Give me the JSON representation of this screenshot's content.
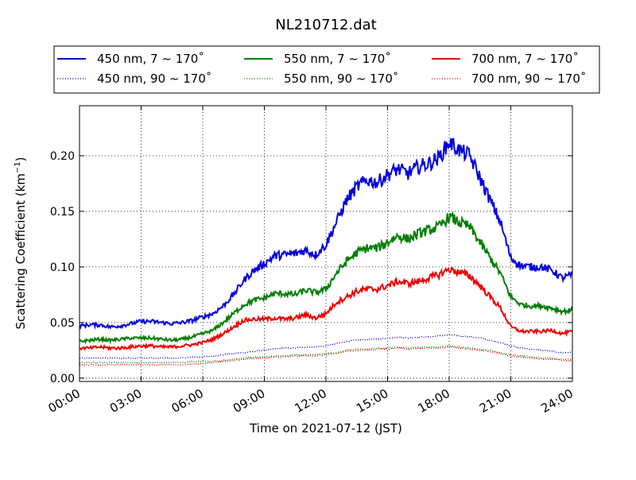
{
  "chart_data": {
    "type": "line",
    "title": "NL210712.dat",
    "xlabel": "Time on 2021-07-12 (JST)",
    "ylabel": "Scattering Coefficient (km",
    "ylabel_sup": "−1",
    "ylabel_close": ")",
    "x_unit": "hours",
    "xlim": [
      0,
      24
    ],
    "ylim": [
      -0.003,
      0.245
    ],
    "grid": true,
    "legend_position": "top (above plot)",
    "x_ticks": [
      {
        "value": 0,
        "label": "00:00"
      },
      {
        "value": 3,
        "label": "03:00"
      },
      {
        "value": 6,
        "label": "06:00"
      },
      {
        "value": 9,
        "label": "09:00"
      },
      {
        "value": 12,
        "label": "12:00"
      },
      {
        "value": 15,
        "label": "15:00"
      },
      {
        "value": 18,
        "label": "18:00"
      },
      {
        "value": 21,
        "label": "21:00"
      },
      {
        "value": 24,
        "label": "24:00"
      }
    ],
    "y_ticks": [
      {
        "value": 0.0,
        "label": "0.00"
      },
      {
        "value": 0.05,
        "label": "0.05"
      },
      {
        "value": 0.1,
        "label": "0.10"
      },
      {
        "value": 0.15,
        "label": "0.15"
      },
      {
        "value": 0.2,
        "label": "0.20"
      }
    ],
    "series": [
      {
        "name": "450 nm, 7 ~ 170˚",
        "color": "#0000dd",
        "style": "solid",
        "x": [
          0,
          0.5,
          1,
          1.5,
          2,
          2.5,
          3,
          3.5,
          4,
          4.5,
          5,
          5.5,
          6,
          6.5,
          7,
          7.5,
          8,
          8.5,
          9,
          9.5,
          10,
          10.5,
          11,
          11.5,
          12,
          12.5,
          13,
          13.5,
          14,
          14.5,
          15,
          15.5,
          16,
          16.5,
          17,
          17.5,
          18,
          18.5,
          19,
          19.5,
          20,
          20.5,
          21,
          21.5,
          22,
          22.5,
          23,
          23.5,
          24
        ],
        "y": [
          0.047,
          0.048,
          0.048,
          0.046,
          0.047,
          0.049,
          0.051,
          0.051,
          0.05,
          0.049,
          0.05,
          0.052,
          0.055,
          0.058,
          0.065,
          0.075,
          0.088,
          0.097,
          0.103,
          0.11,
          0.111,
          0.112,
          0.115,
          0.111,
          0.12,
          0.14,
          0.16,
          0.172,
          0.178,
          0.176,
          0.183,
          0.188,
          0.184,
          0.19,
          0.193,
          0.198,
          0.212,
          0.205,
          0.2,
          0.18,
          0.16,
          0.14,
          0.108,
          0.101,
          0.1,
          0.1,
          0.097,
          0.09,
          0.093
        ]
      },
      {
        "name": "550 nm, 7 ~ 170˚",
        "color": "#007f00",
        "style": "solid",
        "x": [
          0,
          0.5,
          1,
          1.5,
          2,
          2.5,
          3,
          3.5,
          4,
          4.5,
          5,
          5.5,
          6,
          6.5,
          7,
          7.5,
          8,
          8.5,
          9,
          9.5,
          10,
          10.5,
          11,
          11.5,
          12,
          12.5,
          13,
          13.5,
          14,
          14.5,
          15,
          15.5,
          16,
          16.5,
          17,
          17.5,
          18,
          18.5,
          19,
          19.5,
          20,
          20.5,
          21,
          21.5,
          22,
          22.5,
          23,
          23.5,
          24
        ],
        "y": [
          0.033,
          0.034,
          0.035,
          0.034,
          0.035,
          0.036,
          0.036,
          0.036,
          0.035,
          0.034,
          0.035,
          0.037,
          0.04,
          0.043,
          0.05,
          0.058,
          0.066,
          0.07,
          0.072,
          0.076,
          0.076,
          0.075,
          0.079,
          0.077,
          0.08,
          0.094,
          0.105,
          0.113,
          0.117,
          0.117,
          0.122,
          0.128,
          0.125,
          0.13,
          0.133,
          0.136,
          0.145,
          0.14,
          0.136,
          0.122,
          0.108,
          0.094,
          0.073,
          0.066,
          0.065,
          0.065,
          0.063,
          0.06,
          0.061
        ]
      },
      {
        "name": "700 nm, 7 ~ 170˚",
        "color": "#ee0000",
        "style": "solid",
        "x": [
          0,
          0.5,
          1,
          1.5,
          2,
          2.5,
          3,
          3.5,
          4,
          4.5,
          5,
          5.5,
          6,
          6.5,
          7,
          7.5,
          8,
          8.5,
          9,
          9.5,
          10,
          10.5,
          11,
          11.5,
          12,
          12.5,
          13,
          13.5,
          14,
          14.5,
          15,
          15.5,
          16,
          16.5,
          17,
          17.5,
          18,
          18.5,
          19,
          19.5,
          20,
          20.5,
          21,
          21.5,
          22,
          22.5,
          23,
          23.5,
          24
        ],
        "y": [
          0.027,
          0.027,
          0.028,
          0.027,
          0.027,
          0.028,
          0.029,
          0.029,
          0.028,
          0.028,
          0.029,
          0.03,
          0.032,
          0.035,
          0.04,
          0.046,
          0.052,
          0.053,
          0.053,
          0.054,
          0.053,
          0.054,
          0.057,
          0.054,
          0.058,
          0.068,
          0.073,
          0.078,
          0.08,
          0.08,
          0.083,
          0.087,
          0.085,
          0.087,
          0.09,
          0.093,
          0.098,
          0.095,
          0.092,
          0.083,
          0.073,
          0.063,
          0.046,
          0.042,
          0.042,
          0.042,
          0.043,
          0.04,
          0.042
        ]
      },
      {
        "name": "450 nm, 90 ~ 170˚",
        "color": "#0000dd",
        "style": "dotted",
        "x": [
          0,
          0.5,
          1,
          1.5,
          2,
          2.5,
          3,
          3.5,
          4,
          4.5,
          5,
          5.5,
          6,
          6.5,
          7,
          7.5,
          8,
          8.5,
          9,
          9.5,
          10,
          10.5,
          11,
          11.5,
          12,
          12.5,
          13,
          13.5,
          14,
          14.5,
          15,
          15.5,
          16,
          16.5,
          17,
          17.5,
          18,
          18.5,
          19,
          19.5,
          20,
          20.5,
          21,
          21.5,
          22,
          22.5,
          23,
          23.5,
          24
        ],
        "y": [
          0.018,
          0.018,
          0.018,
          0.018,
          0.018,
          0.018,
          0.018,
          0.018,
          0.018,
          0.018,
          0.018,
          0.019,
          0.019,
          0.02,
          0.021,
          0.022,
          0.023,
          0.024,
          0.025,
          0.026,
          0.027,
          0.027,
          0.028,
          0.028,
          0.029,
          0.031,
          0.033,
          0.034,
          0.035,
          0.035,
          0.036,
          0.037,
          0.036,
          0.037,
          0.037,
          0.038,
          0.039,
          0.038,
          0.037,
          0.036,
          0.034,
          0.032,
          0.029,
          0.027,
          0.026,
          0.025,
          0.024,
          0.023,
          0.023
        ]
      },
      {
        "name": "550 nm, 90 ~ 170˚",
        "color": "#007f00",
        "style": "dotted",
        "x": [
          0,
          0.5,
          1,
          1.5,
          2,
          2.5,
          3,
          3.5,
          4,
          4.5,
          5,
          5.5,
          6,
          6.5,
          7,
          7.5,
          8,
          8.5,
          9,
          9.5,
          10,
          10.5,
          11,
          11.5,
          12,
          12.5,
          13,
          13.5,
          14,
          14.5,
          15,
          15.5,
          16,
          16.5,
          17,
          17.5,
          18,
          18.5,
          19,
          19.5,
          20,
          20.5,
          21,
          21.5,
          22,
          22.5,
          23,
          23.5,
          24
        ],
        "y": [
          0.014,
          0.014,
          0.014,
          0.014,
          0.014,
          0.014,
          0.014,
          0.014,
          0.014,
          0.014,
          0.014,
          0.015,
          0.015,
          0.015,
          0.016,
          0.017,
          0.018,
          0.019,
          0.019,
          0.02,
          0.02,
          0.021,
          0.021,
          0.021,
          0.022,
          0.023,
          0.025,
          0.026,
          0.026,
          0.027,
          0.027,
          0.028,
          0.027,
          0.028,
          0.028,
          0.028,
          0.029,
          0.028,
          0.027,
          0.026,
          0.025,
          0.023,
          0.021,
          0.02,
          0.019,
          0.018,
          0.018,
          0.017,
          0.017
        ]
      },
      {
        "name": "700 nm, 90 ~ 170˚",
        "color": "#ee0000",
        "style": "dotted",
        "x": [
          0,
          0.5,
          1,
          1.5,
          2,
          2.5,
          3,
          3.5,
          4,
          4.5,
          5,
          5.5,
          6,
          6.5,
          7,
          7.5,
          8,
          8.5,
          9,
          9.5,
          10,
          10.5,
          11,
          11.5,
          12,
          12.5,
          13,
          13.5,
          14,
          14.5,
          15,
          15.5,
          16,
          16.5,
          17,
          17.5,
          18,
          18.5,
          19,
          19.5,
          20,
          20.5,
          21,
          21.5,
          22,
          22.5,
          23,
          23.5,
          24
        ],
        "y": [
          0.012,
          0.012,
          0.012,
          0.012,
          0.012,
          0.012,
          0.012,
          0.012,
          0.012,
          0.012,
          0.012,
          0.013,
          0.013,
          0.014,
          0.015,
          0.016,
          0.017,
          0.018,
          0.018,
          0.019,
          0.019,
          0.02,
          0.02,
          0.02,
          0.021,
          0.022,
          0.024,
          0.025,
          0.025,
          0.026,
          0.026,
          0.027,
          0.026,
          0.027,
          0.027,
          0.027,
          0.028,
          0.027,
          0.026,
          0.025,
          0.024,
          0.022,
          0.02,
          0.019,
          0.018,
          0.017,
          0.017,
          0.016,
          0.016
        ]
      }
    ]
  }
}
